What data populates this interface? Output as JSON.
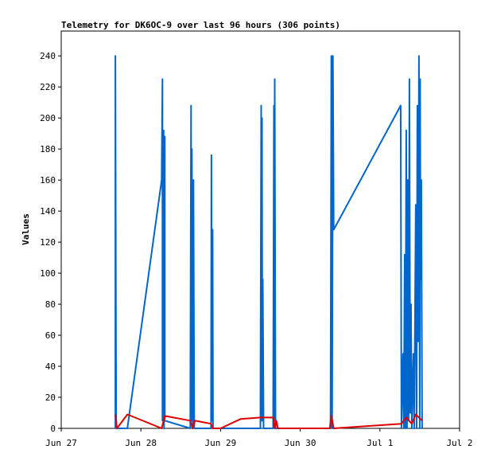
{
  "chart_data": {
    "type": "line",
    "title": "Telemetry for DK6OC-9 over last 96 hours (306 points)",
    "xlabel": "",
    "ylabel": "Values",
    "x_ticks": [
      "Jun 27",
      "Jun 28",
      "Jun 29",
      "Jun 30",
      "Jul 1",
      "Jul 2"
    ],
    "y_ticks": [
      0,
      20,
      40,
      60,
      80,
      100,
      120,
      140,
      160,
      180,
      200,
      220,
      240
    ],
    "xlim": [
      0,
      5
    ],
    "ylim": [
      0,
      256
    ],
    "grid": false,
    "series": [
      {
        "color": "#0066cc",
        "points": [
          [
            0.68,
            0
          ],
          [
            0.68,
            240
          ],
          [
            0.69,
            0
          ],
          [
            0.72,
            0
          ],
          [
            0.83,
            0
          ],
          [
            1.26,
            160
          ],
          [
            1.27,
            225
          ],
          [
            1.27,
            5
          ],
          [
            1.28,
            10
          ],
          [
            1.285,
            192
          ],
          [
            1.29,
            0
          ],
          [
            1.3,
            188
          ],
          [
            1.3,
            5
          ],
          [
            1.62,
            0
          ],
          [
            1.63,
            208
          ],
          [
            1.635,
            5
          ],
          [
            1.64,
            180
          ],
          [
            1.65,
            0
          ],
          [
            1.66,
            160
          ],
          [
            1.67,
            0
          ],
          [
            1.88,
            0
          ],
          [
            1.885,
            176
          ],
          [
            1.89,
            5
          ],
          [
            1.9,
            128
          ],
          [
            1.905,
            0
          ],
          [
            2.5,
            0
          ],
          [
            2.51,
            208
          ],
          [
            2.515,
            5
          ],
          [
            2.52,
            200
          ],
          [
            2.525,
            5
          ],
          [
            2.53,
            96
          ],
          [
            2.54,
            0
          ],
          [
            2.66,
            0
          ],
          [
            2.67,
            208
          ],
          [
            2.675,
            5
          ],
          [
            2.68,
            225
          ],
          [
            2.69,
            0
          ],
          [
            3.38,
            0
          ],
          [
            3.39,
            240
          ],
          [
            3.4,
            0
          ],
          [
            3.41,
            240
          ],
          [
            3.42,
            128
          ],
          [
            4.26,
            208
          ],
          [
            4.27,
            0
          ],
          [
            4.29,
            48
          ],
          [
            4.3,
            0
          ],
          [
            4.31,
            112
          ],
          [
            4.32,
            0
          ],
          [
            4.33,
            192
          ],
          [
            4.34,
            0
          ],
          [
            4.35,
            160
          ],
          [
            4.36,
            5
          ],
          [
            4.37,
            225
          ],
          [
            4.38,
            10
          ],
          [
            4.39,
            80
          ],
          [
            4.4,
            0
          ],
          [
            4.42,
            48
          ],
          [
            4.43,
            0
          ],
          [
            4.45,
            144
          ],
          [
            4.46,
            0
          ],
          [
            4.47,
            208
          ],
          [
            4.48,
            56
          ],
          [
            4.49,
            240
          ],
          [
            4.5,
            0
          ],
          [
            4.505,
            225
          ],
          [
            4.51,
            96
          ],
          [
            4.52,
            160
          ],
          [
            4.53,
            0
          ]
        ]
      },
      {
        "color": "#dd0000",
        "points": [
          [
            0.68,
            9
          ],
          [
            0.7,
            0
          ],
          [
            0.83,
            9
          ],
          [
            1.26,
            0
          ],
          [
            1.3,
            8
          ],
          [
            1.62,
            5
          ],
          [
            1.65,
            0
          ],
          [
            1.68,
            5
          ],
          [
            1.88,
            3
          ],
          [
            1.9,
            0
          ],
          [
            2.0,
            0
          ],
          [
            2.25,
            6
          ],
          [
            2.5,
            7
          ],
          [
            2.66,
            7
          ],
          [
            2.68,
            0
          ],
          [
            2.7,
            5
          ],
          [
            2.72,
            0
          ],
          [
            3.37,
            0
          ],
          [
            3.39,
            8
          ],
          [
            3.42,
            0
          ],
          [
            4.27,
            3
          ],
          [
            4.33,
            7
          ],
          [
            4.4,
            3
          ],
          [
            4.45,
            9
          ],
          [
            4.53,
            5
          ]
        ]
      }
    ]
  }
}
